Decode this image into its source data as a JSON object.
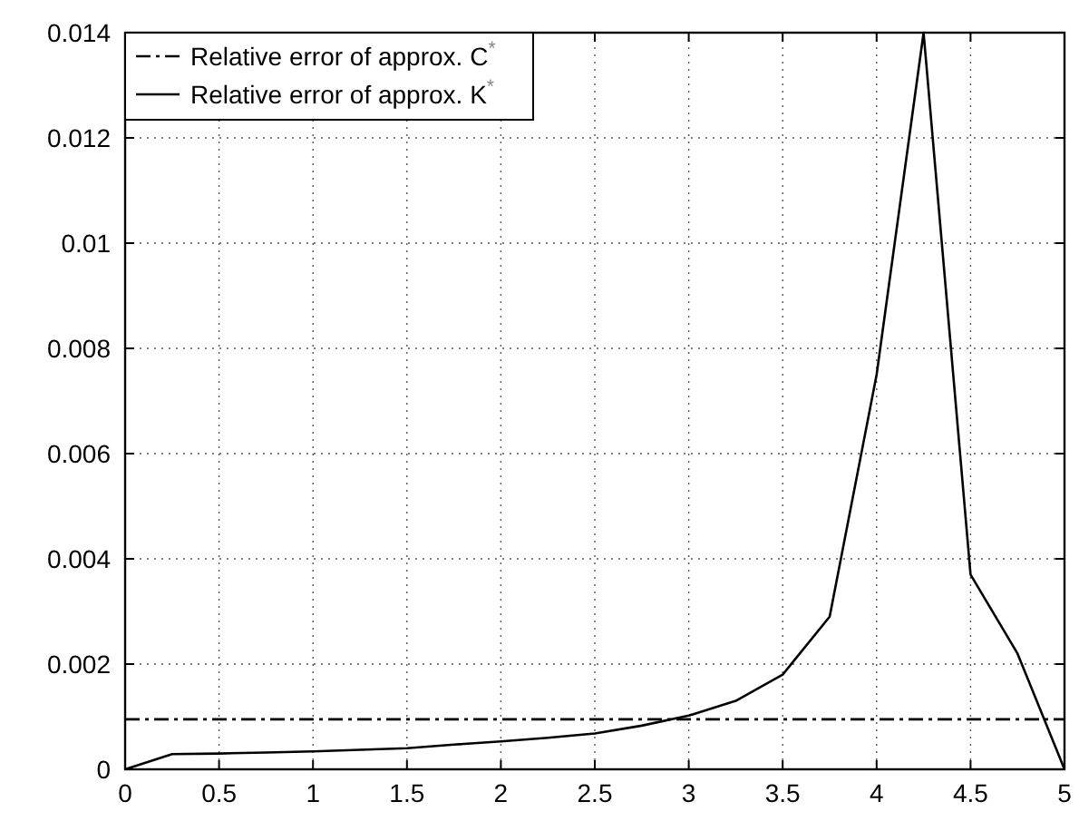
{
  "chart_data": {
    "type": "line",
    "legend": "top left",
    "grid": true,
    "xlim": [
      0,
      5
    ],
    "xticks": [
      0,
      0.5,
      1,
      1.5,
      2,
      2.5,
      3,
      3.5,
      4,
      4.5,
      5
    ],
    "ylim": [
      0,
      0.014
    ],
    "yticks": [
      0,
      0.002,
      0.004,
      0.006,
      0.008,
      0.01,
      0.012,
      0.014
    ],
    "series": [
      {
        "name": "Relative error of approx. C$^{*}$",
        "color": "#000000",
        "line_style": "dashdot",
        "x": [
          0,
          5
        ],
        "values": [
          0.00095,
          0.00095
        ]
      },
      {
        "name": "Relative error of approx. K$^{*}$",
        "color": "#000000",
        "line_style": "solid",
        "x": [
          0,
          0.25,
          0.5,
          0.75,
          1,
          1.25,
          1.5,
          1.75,
          2,
          2.25,
          2.5,
          2.75,
          3,
          3.25,
          3.5,
          3.75,
          4,
          4.25,
          4.5,
          4.75,
          5
        ],
        "values": [
          0,
          0.00029,
          0.0003,
          0.00032,
          0.00034,
          0.00037,
          0.0004,
          0.00047,
          0.00053,
          0.0006,
          0.00068,
          0.00083,
          0.00102,
          0.0013,
          0.0018,
          0.0029,
          0.0075,
          0.014,
          0.0037,
          0.0022,
          0
        ]
      }
    ]
  }
}
